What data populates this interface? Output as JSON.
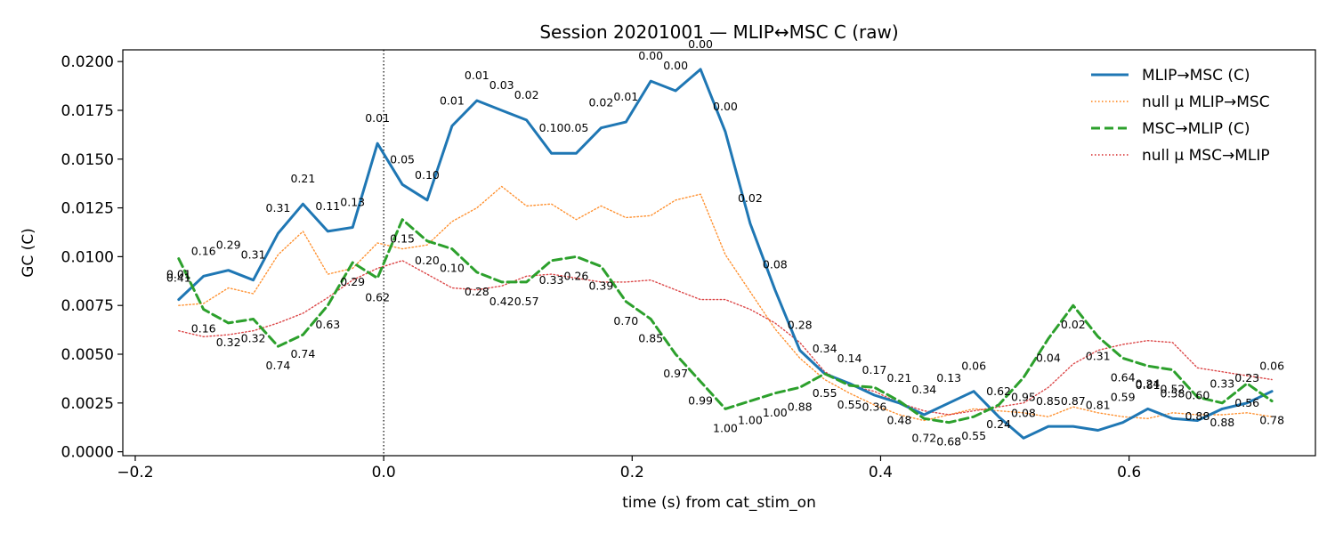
{
  "chart_data": {
    "type": "line",
    "title": "Session 20201001 — MLIP↔MSC C (raw)",
    "xlabel": "time (s) from cat_stim_on",
    "ylabel": "GC (C)",
    "xlim": [
      -0.21,
      0.75
    ],
    "ylim": [
      -0.0002,
      0.0206
    ],
    "xticks": [
      -0.2,
      0.0,
      0.2,
      0.4,
      0.6
    ],
    "xtick_labels": [
      "−0.2",
      "0.0",
      "0.2",
      "0.4",
      "0.6"
    ],
    "yticks": [
      0.0,
      0.0025,
      0.005,
      0.0075,
      0.01,
      0.0125,
      0.015,
      0.0175,
      0.02
    ],
    "ytick_labels": [
      "0.0000",
      "0.0025",
      "0.0050",
      "0.0075",
      "0.0100",
      "0.0125",
      "0.0150",
      "0.0175",
      "0.0200"
    ],
    "vline_x": 0.0,
    "grid": false,
    "legend_position": "top-right",
    "x": [
      -0.165,
      -0.145,
      -0.125,
      -0.105,
      -0.085,
      -0.065,
      -0.045,
      -0.025,
      -0.005,
      0.015,
      0.035,
      0.055,
      0.075,
      0.095,
      0.115,
      0.135,
      0.155,
      0.175,
      0.195,
      0.215,
      0.235,
      0.255,
      0.275,
      0.295,
      0.315,
      0.335,
      0.355,
      0.375,
      0.395,
      0.415,
      0.435,
      0.455,
      0.475,
      0.495,
      0.515,
      0.535,
      0.555,
      0.575,
      0.595,
      0.615,
      0.635,
      0.655,
      0.675,
      0.695,
      0.715
    ],
    "series": [
      {
        "name": "MLIP→MSC (C)",
        "color": "#1f77b4",
        "style": "solid",
        "values": [
          0.0078,
          0.009,
          0.0093,
          0.0088,
          0.0112,
          0.0127,
          0.0113,
          0.0115,
          0.0158,
          0.0137,
          0.0129,
          0.0167,
          0.018,
          0.0175,
          0.017,
          0.0153,
          0.0153,
          0.0166,
          0.0169,
          0.019,
          0.0185,
          0.0196,
          0.0164,
          0.0117,
          0.0083,
          0.0052,
          0.004,
          0.0035,
          0.0029,
          0.0025,
          0.0019,
          0.0025,
          0.0031,
          0.0018,
          0.0007,
          0.0013,
          0.0013,
          0.0011,
          0.0015,
          0.0022,
          0.0017,
          0.0016,
          0.0022,
          0.0025,
          0.0031
        ],
        "p_labels": [
          "0.01",
          "0.16",
          "0.29",
          "0.31",
          "0.31",
          "0.21",
          "0.11",
          "0.13",
          "0.01",
          "0.05",
          "0.10",
          "0.01",
          "0.01",
          "0.03",
          "0.02",
          "0.10",
          "0.05",
          "0.02",
          "0.01",
          "0.00",
          "0.00",
          "0.00",
          "0.00",
          "0.02",
          "0.08",
          "0.28",
          "0.34",
          "0.14",
          "0.17",
          "0.21",
          "0.34",
          "0.13",
          "0.06",
          "0.62",
          "0.08",
          "0.85",
          "0.87",
          "0.81",
          "0.59",
          "0.24",
          "0.58",
          "0.60",
          "0.33",
          "0.23",
          "0.06"
        ]
      },
      {
        "name": "null μ MLIP→MSC",
        "color": "#ff7f0e",
        "style": "dotted",
        "values": [
          0.0075,
          0.0076,
          0.0084,
          0.0081,
          0.0101,
          0.0113,
          0.0091,
          0.0094,
          0.0107,
          0.0104,
          0.0106,
          0.0118,
          0.0125,
          0.0136,
          0.0126,
          0.0127,
          0.0119,
          0.0126,
          0.012,
          0.0121,
          0.0129,
          0.0132,
          0.0101,
          0.0082,
          0.0063,
          0.0048,
          0.0037,
          0.003,
          0.0024,
          0.0019,
          0.0016,
          0.0019,
          0.0022,
          0.0021,
          0.002,
          0.0018,
          0.0023,
          0.002,
          0.0018,
          0.0017,
          0.002,
          0.0019,
          0.0019,
          0.002,
          0.0018
        ]
      },
      {
        "name": "MSC→MLIP (C)",
        "color": "#2ca02c",
        "style": "dashed",
        "values": [
          0.0099,
          0.0073,
          0.0066,
          0.0068,
          0.0054,
          0.006,
          0.0075,
          0.0097,
          0.0089,
          0.0119,
          0.0108,
          0.0104,
          0.0092,
          0.0087,
          0.0087,
          0.0098,
          0.01,
          0.0095,
          0.0077,
          0.0068,
          0.005,
          0.0036,
          0.0022,
          0.0026,
          0.003,
          0.0033,
          0.004,
          0.0034,
          0.0033,
          0.0026,
          0.0017,
          0.0015,
          0.0018,
          0.0024,
          0.0038,
          0.0058,
          0.0075,
          0.0059,
          0.0048,
          0.0044,
          0.0042,
          0.0028,
          0.0025,
          0.0035,
          0.0026
        ],
        "p_labels": [
          "0.41",
          "0.16",
          "0.32",
          "0.32",
          "0.74",
          "0.74",
          "0.63",
          "0.29",
          "0.62",
          "0.15",
          "0.20",
          "0.10",
          "0.28",
          "0.42",
          "0.57",
          "0.33",
          "0.26",
          "0.39",
          "0.70",
          "0.85",
          "0.97",
          "0.99",
          "1.00",
          "1.00",
          "1.00",
          "0.88",
          "0.55",
          "0.55",
          "0.36",
          "0.48",
          "0.72",
          "0.68",
          "0.55",
          "0.24",
          "0.95",
          "0.04",
          "0.02",
          "0.31",
          "0.64",
          "0.81",
          "0.52",
          "0.88",
          "0.88",
          "0.56",
          "0.78"
        ]
      },
      {
        "name": "null μ MSC→MLIP",
        "color": "#d62728",
        "style": "dotted",
        "values": [
          0.0062,
          0.0059,
          0.006,
          0.0062,
          0.0066,
          0.0071,
          0.0079,
          0.0088,
          0.0094,
          0.0098,
          0.0091,
          0.0084,
          0.0083,
          0.0085,
          0.009,
          0.0091,
          0.0089,
          0.0087,
          0.0087,
          0.0088,
          0.0083,
          0.0078,
          0.0078,
          0.0073,
          0.0066,
          0.0056,
          0.0041,
          0.0034,
          0.0031,
          0.0025,
          0.0021,
          0.0019,
          0.0021,
          0.0023,
          0.0025,
          0.0033,
          0.0045,
          0.0052,
          0.0055,
          0.0057,
          0.0056,
          0.0043,
          0.0041,
          0.0039,
          0.0037
        ]
      }
    ]
  }
}
